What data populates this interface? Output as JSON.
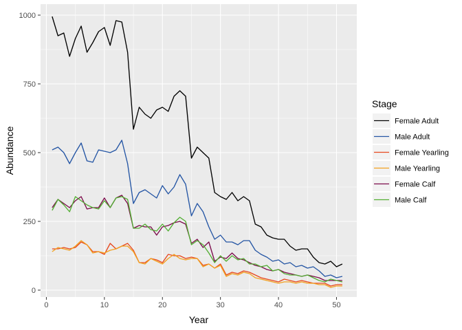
{
  "chart_data": {
    "type": "line",
    "xlabel": "Year",
    "ylabel": "Abundance",
    "xlim": [
      -1,
      53.5
    ],
    "ylim": [
      -25,
      1040
    ],
    "x_ticks": [
      0,
      10,
      20,
      30,
      40,
      50
    ],
    "y_ticks": [
      0,
      250,
      500,
      750,
      1000
    ],
    "x_tick_labels": [
      "0",
      "10",
      "20",
      "30",
      "40",
      "50"
    ],
    "y_tick_labels": [
      "0",
      "250",
      "500",
      "750",
      "1000"
    ],
    "grid": true,
    "panel_background": "#EBEBEB",
    "legend": {
      "title": "Stage",
      "placement": "right"
    },
    "x": [
      1,
      2,
      3,
      4,
      5,
      6,
      7,
      8,
      9,
      10,
      11,
      12,
      13,
      14,
      15,
      16,
      17,
      18,
      19,
      20,
      21,
      22,
      23,
      24,
      25,
      26,
      27,
      28,
      29,
      30,
      31,
      32,
      33,
      34,
      35,
      36,
      37,
      38,
      39,
      40,
      41,
      42,
      43,
      44,
      45,
      46,
      47,
      48,
      49,
      50,
      51
    ],
    "series": [
      {
        "name": "Female Adult",
        "color": "#000000",
        "values": [
          995,
          925,
          935,
          850,
          915,
          960,
          865,
          900,
          940,
          955,
          890,
          980,
          975,
          865,
          585,
          665,
          640,
          625,
          655,
          665,
          650,
          705,
          725,
          705,
          480,
          520,
          500,
          480,
          355,
          340,
          330,
          355,
          325,
          340,
          325,
          240,
          230,
          200,
          190,
          185,
          185,
          160,
          145,
          150,
          150,
          120,
          100,
          95,
          105,
          85,
          95
        ]
      },
      {
        "name": "Male Adult",
        "color": "#2455A4",
        "values": [
          510,
          520,
          500,
          460,
          500,
          535,
          470,
          465,
          510,
          505,
          500,
          510,
          545,
          460,
          315,
          355,
          365,
          350,
          335,
          380,
          350,
          375,
          420,
          385,
          270,
          315,
          285,
          230,
          185,
          200,
          175,
          175,
          165,
          180,
          180,
          145,
          130,
          120,
          105,
          110,
          95,
          100,
          85,
          90,
          80,
          85,
          70,
          50,
          55,
          45,
          50
        ]
      },
      {
        "name": "Female Yearling",
        "color": "#E8481E",
        "values": [
          150,
          150,
          155,
          150,
          155,
          175,
          165,
          140,
          140,
          130,
          170,
          150,
          160,
          170,
          145,
          100,
          100,
          115,
          110,
          100,
          130,
          125,
          125,
          115,
          120,
          115,
          90,
          95,
          80,
          95,
          55,
          65,
          60,
          70,
          65,
          55,
          45,
          40,
          35,
          30,
          40,
          35,
          30,
          35,
          30,
          25,
          25,
          25,
          15,
          20,
          20
        ]
      },
      {
        "name": "Male Yearling",
        "color": "#F2A01E",
        "values": [
          140,
          155,
          150,
          145,
          160,
          180,
          165,
          135,
          140,
          135,
          145,
          150,
          160,
          160,
          140,
          100,
          95,
          115,
          105,
          95,
          115,
          130,
          115,
          110,
          115,
          115,
          85,
          95,
          80,
          90,
          50,
          60,
          55,
          65,
          60,
          45,
          40,
          35,
          30,
          25,
          30,
          30,
          25,
          30,
          25,
          25,
          20,
          20,
          10,
          15,
          15
        ]
      },
      {
        "name": "Female Calf",
        "color": "#7B0B4A",
        "values": [
          300,
          330,
          315,
          300,
          325,
          340,
          295,
          300,
          300,
          335,
          300,
          335,
          345,
          315,
          225,
          235,
          230,
          230,
          200,
          230,
          235,
          245,
          250,
          240,
          170,
          185,
          155,
          175,
          105,
          120,
          115,
          135,
          115,
          110,
          100,
          90,
          85,
          75,
          70,
          75,
          65,
          60,
          55,
          50,
          55,
          50,
          45,
          35,
          35,
          35,
          35
        ]
      },
      {
        "name": "Male Calf",
        "color": "#52AE32",
        "values": [
          290,
          330,
          310,
          285,
          340,
          325,
          310,
          300,
          295,
          325,
          300,
          335,
          340,
          330,
          225,
          225,
          240,
          220,
          215,
          240,
          215,
          245,
          265,
          250,
          165,
          180,
          165,
          135,
          100,
          125,
          105,
          125,
          110,
          115,
          95,
          95,
          85,
          90,
          70,
          75,
          60,
          55,
          55,
          50,
          55,
          45,
          35,
          30,
          40,
          35,
          30
        ]
      }
    ]
  }
}
